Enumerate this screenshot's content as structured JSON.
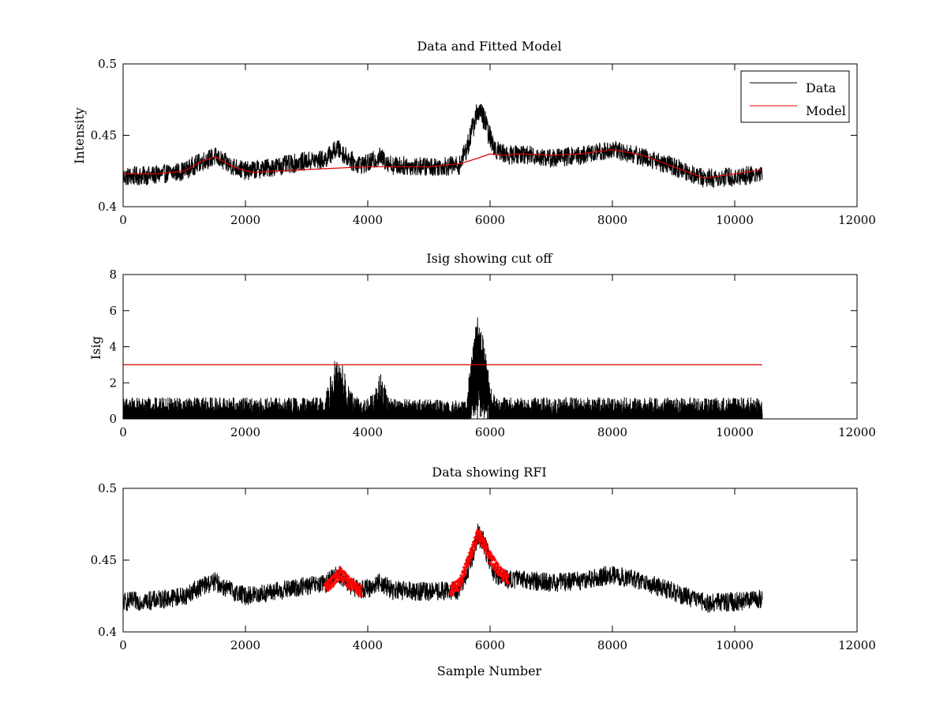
{
  "colors": {
    "data": "#000000",
    "model": "#e00000",
    "rfi": "#ff0000",
    "axes": "#000000",
    "background": "#ffffff"
  },
  "chart_data": [
    {
      "type": "line",
      "title": "Data and Fitted Model",
      "xlabel": "",
      "ylabel": "Intensity",
      "xlim": [
        0,
        12000
      ],
      "ylim": [
        0.4,
        0.5
      ],
      "xticks": [
        0,
        2000,
        4000,
        6000,
        8000,
        10000,
        12000
      ],
      "yticks": [
        0.4,
        0.45,
        0.5
      ],
      "xtick_labels": [
        "0",
        "2000",
        "4000",
        "6000",
        "8000",
        "10000",
        "12000"
      ],
      "ytick_labels": [
        "0.4",
        "0.45",
        "0.5"
      ],
      "grid": false,
      "legend": {
        "placement": "top-right",
        "entries": [
          "Data",
          "Model"
        ]
      },
      "series": [
        {
          "name": "Data",
          "style": "line",
          "color": "#000000",
          "noise": 0.0045,
          "x": [
            0,
            500,
            1000,
            1300,
            1500,
            1700,
            2000,
            2500,
            3000,
            3300,
            3500,
            3650,
            3800,
            4000,
            4200,
            4400,
            5000,
            5500,
            5650,
            5800,
            5900,
            6000,
            6100,
            6300,
            6500,
            7000,
            7500,
            8000,
            8500,
            9000,
            9500,
            10000,
            10450
          ],
          "y": [
            0.421,
            0.422,
            0.425,
            0.432,
            0.435,
            0.43,
            0.425,
            0.428,
            0.432,
            0.433,
            0.441,
            0.435,
            0.43,
            0.43,
            0.435,
            0.429,
            0.428,
            0.429,
            0.445,
            0.468,
            0.462,
            0.448,
            0.44,
            0.436,
            0.437,
            0.434,
            0.436,
            0.44,
            0.435,
            0.428,
            0.42,
            0.421,
            0.423
          ]
        },
        {
          "name": "Model",
          "style": "line",
          "color": "#e00000",
          "x": [
            0,
            500,
            1000,
            1300,
            1500,
            1800,
            2100,
            2500,
            3000,
            3500,
            4000,
            4500,
            5000,
            5500,
            5800,
            6000,
            6200,
            6500,
            7000,
            7500,
            8000,
            8500,
            9000,
            9500,
            10000,
            10450
          ],
          "y": [
            0.423,
            0.423,
            0.425,
            0.432,
            0.435,
            0.428,
            0.424,
            0.425,
            0.426,
            0.427,
            0.428,
            0.428,
            0.428,
            0.43,
            0.434,
            0.437,
            0.436,
            0.437,
            0.436,
            0.437,
            0.44,
            0.436,
            0.428,
            0.42,
            0.423,
            0.426
          ]
        }
      ]
    },
    {
      "type": "line",
      "title": "Isig showing cut off",
      "xlabel": "",
      "ylabel": "Isig",
      "xlim": [
        0,
        12000
      ],
      "ylim": [
        0,
        8
      ],
      "xticks": [
        0,
        2000,
        4000,
        6000,
        8000,
        10000,
        12000
      ],
      "yticks": [
        0,
        2,
        4,
        6,
        8
      ],
      "xtick_labels": [
        "0",
        "2000",
        "4000",
        "6000",
        "8000",
        "10000",
        "12000"
      ],
      "ytick_labels": [
        "0",
        "2",
        "4",
        "6",
        "8"
      ],
      "grid": false,
      "series": [
        {
          "name": "Isig",
          "style": "bars",
          "color": "#000000",
          "x": [
            0,
            3300,
            3450,
            3550,
            3700,
            3900,
            4100,
            4200,
            4350,
            5600,
            5700,
            5800,
            5900,
            6000,
            6100,
            10450
          ],
          "y": [
            1.2,
            1.2,
            3.2,
            3.6,
            1.6,
            1.0,
            1.4,
            2.6,
            1.2,
            1.0,
            3.5,
            6.2,
            4.3,
            2.0,
            1.2,
            1.2
          ]
        },
        {
          "name": "Cut off",
          "style": "line",
          "color": "#e00000",
          "x": [
            0,
            10450
          ],
          "y": [
            3,
            3
          ]
        }
      ]
    },
    {
      "type": "scatter",
      "title": "Data showing RFI",
      "xlabel": "Sample Number",
      "ylabel": "",
      "xlim": [
        0,
        12000
      ],
      "ylim": [
        0.4,
        0.5
      ],
      "xticks": [
        0,
        2000,
        4000,
        6000,
        8000,
        10000,
        12000
      ],
      "yticks": [
        0.4,
        0.45,
        0.5
      ],
      "xtick_labels": [
        "0",
        "2000",
        "4000",
        "6000",
        "8000",
        "10000",
        "12000"
      ],
      "ytick_labels": [
        "0.4",
        "0.45",
        "0.5"
      ],
      "grid": false,
      "series": [
        {
          "name": "Data",
          "style": "line",
          "color": "#000000",
          "noise": 0.0045,
          "x": [
            0,
            500,
            1000,
            1300,
            1500,
            1700,
            2000,
            2500,
            3000,
            3300,
            3500,
            3650,
            3800,
            4000,
            4200,
            4400,
            5000,
            5500,
            5650,
            5800,
            5900,
            6000,
            6100,
            6300,
            6500,
            7000,
            7500,
            8000,
            8500,
            9000,
            9500,
            10000,
            10450
          ],
          "y": [
            0.421,
            0.422,
            0.425,
            0.432,
            0.435,
            0.43,
            0.425,
            0.428,
            0.432,
            0.433,
            0.441,
            0.435,
            0.43,
            0.43,
            0.435,
            0.429,
            0.428,
            0.429,
            0.445,
            0.468,
            0.462,
            0.448,
            0.44,
            0.436,
            0.437,
            0.434,
            0.436,
            0.44,
            0.435,
            0.428,
            0.42,
            0.421,
            0.423
          ]
        },
        {
          "name": "RFI",
          "style": "markers",
          "color": "#ff0000",
          "noise": 0.004,
          "ranges": [
            [
              3300,
              3900
            ],
            [
              5350,
              6300
            ]
          ],
          "x": [
            3300,
            3450,
            3550,
            3700,
            3900,
            5350,
            5500,
            5650,
            5800,
            5900,
            6000,
            6150,
            6300
          ],
          "y": [
            0.431,
            0.436,
            0.441,
            0.434,
            0.428,
            0.429,
            0.433,
            0.45,
            0.468,
            0.462,
            0.452,
            0.442,
            0.437
          ]
        }
      ]
    }
  ]
}
